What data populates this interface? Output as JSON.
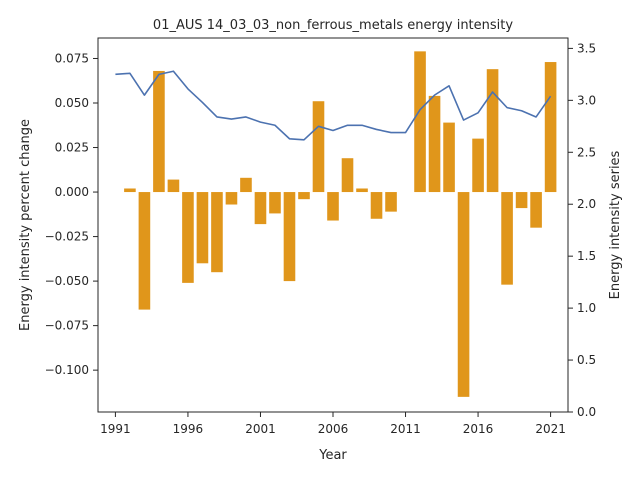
{
  "chart_data": {
    "type": "bar",
    "title": "01_AUS 14_03_03_non_ferrous_metals energy intensity",
    "xlabel": "Year",
    "ylabel": "Energy intensity percent change",
    "y2label": "Energy intensity series",
    "xlim": [
      1989.8,
      2022.2
    ],
    "ylim": [
      -0.1235,
      0.0865
    ],
    "y2lim": [
      0.0,
      3.6
    ],
    "x_ticks": [
      1991,
      1996,
      2001,
      2006,
      2011,
      2016,
      2021
    ],
    "y_ticks": [
      -0.1,
      -0.075,
      -0.05,
      -0.025,
      0.0,
      0.025,
      0.05,
      0.075
    ],
    "y_tick_labels": [
      "−0.100",
      "−0.075",
      "−0.050",
      "−0.025",
      "0.000",
      "0.025",
      "0.050",
      "0.075"
    ],
    "y2_ticks": [
      0.0,
      0.5,
      1.0,
      1.5,
      2.0,
      2.5,
      3.0,
      3.5
    ],
    "y2_tick_labels": [
      "0.0",
      "0.5",
      "1.0",
      "1.5",
      "2.0",
      "2.5",
      "3.0",
      "3.5"
    ],
    "grid": false,
    "legend": "none",
    "colors": {
      "bars": "#e0961b",
      "line": "#4c72b0",
      "axes": "#262626"
    },
    "series": [
      {
        "type": "bar",
        "axis": "left",
        "x": [
          1992,
          1993,
          1994,
          1995,
          1996,
          1997,
          1998,
          1999,
          2000,
          2001,
          2002,
          2003,
          2004,
          2005,
          2006,
          2007,
          2008,
          2009,
          2010,
          2011,
          2012,
          2013,
          2014,
          2015,
          2016,
          2017,
          2018,
          2019,
          2020,
          2021
        ],
        "values": [
          0.002,
          -0.066,
          0.068,
          0.007,
          -0.051,
          -0.04,
          -0.045,
          -0.007,
          0.008,
          -0.018,
          -0.012,
          -0.05,
          -0.004,
          0.051,
          -0.016,
          0.019,
          0.002,
          -0.015,
          -0.011,
          0.0,
          0.079,
          0.054,
          0.039,
          -0.115,
          0.03,
          0.069,
          -0.052,
          -0.009,
          -0.02,
          0.073
        ]
      },
      {
        "type": "line",
        "axis": "right",
        "x": [
          1991,
          1992,
          1993,
          1994,
          1995,
          1996,
          1997,
          1998,
          1999,
          2000,
          2001,
          2002,
          2003,
          2004,
          2005,
          2006,
          2007,
          2008,
          2009,
          2010,
          2011,
          2012,
          2013,
          2014,
          2015,
          2016,
          2017,
          2018,
          2019,
          2020,
          2021
        ],
        "values": [
          3.25,
          3.26,
          3.05,
          3.25,
          3.28,
          3.11,
          2.98,
          2.84,
          2.82,
          2.84,
          2.79,
          2.76,
          2.63,
          2.62,
          2.75,
          2.71,
          2.76,
          2.76,
          2.72,
          2.69,
          2.69,
          2.91,
          3.05,
          3.14,
          2.81,
          2.88,
          3.08,
          2.93,
          2.9,
          2.84,
          3.04
        ]
      }
    ]
  }
}
